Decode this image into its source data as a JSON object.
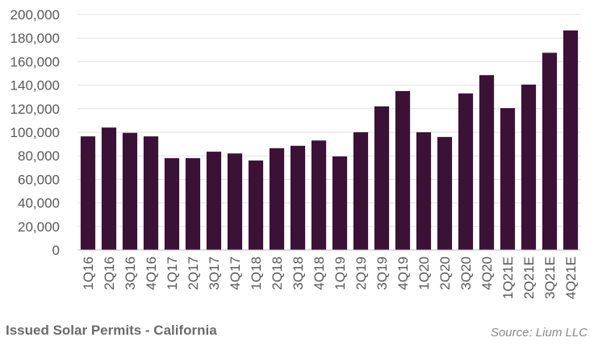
{
  "chart_data": {
    "type": "bar",
    "categories": [
      "1Q16",
      "2Q16",
      "3Q16",
      "4Q16",
      "1Q17",
      "2Q17",
      "3Q17",
      "4Q17",
      "1Q18",
      "2Q18",
      "3Q18",
      "4Q18",
      "1Q19",
      "2Q19",
      "3Q19",
      "4Q19",
      "1Q20",
      "2Q20",
      "3Q20",
      "4Q20",
      "1Q21E",
      "2Q21E",
      "3Q21E",
      "4Q21E"
    ],
    "values": [
      96500,
      104000,
      99500,
      96500,
      78000,
      78000,
      83500,
      82000,
      76000,
      86500,
      88500,
      93000,
      79500,
      100000,
      122000,
      135000,
      100000,
      96000,
      133000,
      148500,
      120500,
      140500,
      167500,
      186500
    ],
    "title": "Issued Solar Permits - California",
    "source": "Source: Lium LLC",
    "xlabel": "",
    "ylabel": "",
    "ylim": [
      0,
      200000
    ],
    "yticks": [
      "0",
      "20,000",
      "40,000",
      "60,000",
      "80,000",
      "100,000",
      "120,000",
      "140,000",
      "160,000",
      "180,000",
      "200,000"
    ],
    "grid": true,
    "legend": "none",
    "bar_color": "#3b1236"
  }
}
